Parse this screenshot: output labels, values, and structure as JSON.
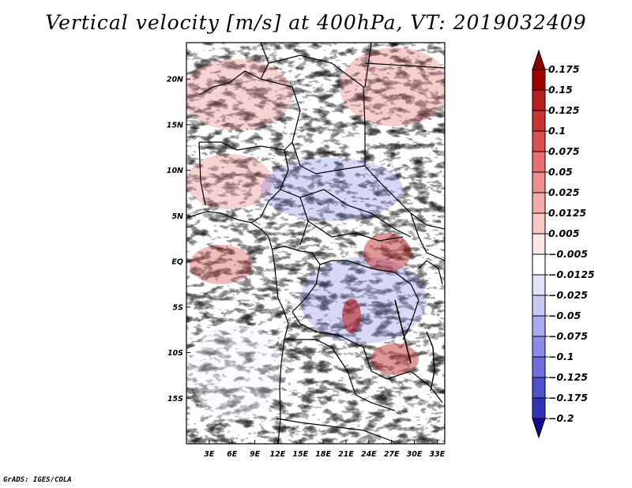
{
  "title": "Vertical velocity [m/s] at 400hPa, VT: 2019032409",
  "credit": "GrADS: IGES/COLA",
  "map": {
    "lon_range": [
      0,
      34
    ],
    "lat_range": [
      -20,
      24
    ],
    "lon_ticks": [
      {
        "value": 3,
        "label": "3E"
      },
      {
        "value": 6,
        "label": "6E"
      },
      {
        "value": 9,
        "label": "9E"
      },
      {
        "value": 12,
        "label": "12E"
      },
      {
        "value": 15,
        "label": "15E"
      },
      {
        "value": 18,
        "label": "18E"
      },
      {
        "value": 21,
        "label": "21E"
      },
      {
        "value": 24,
        "label": "24E"
      },
      {
        "value": 27,
        "label": "27E"
      },
      {
        "value": 30,
        "label": "30E"
      },
      {
        "value": 33,
        "label": "33E"
      }
    ],
    "lat_ticks": [
      {
        "value": 20,
        "label": "20N"
      },
      {
        "value": 15,
        "label": "15N"
      },
      {
        "value": 10,
        "label": "10N"
      },
      {
        "value": 5,
        "label": "5N"
      },
      {
        "value": 0,
        "label": "EQ"
      },
      {
        "value": -5,
        "label": "5S"
      },
      {
        "value": -10,
        "label": "10S"
      },
      {
        "value": -15,
        "label": "15S"
      }
    ]
  },
  "colorbar": {
    "levels": [
      {
        "label": "0.175",
        "color": "#a00000"
      },
      {
        "label": "0.15",
        "color": "#b81e1e"
      },
      {
        "label": "0.125",
        "color": "#cc3232"
      },
      {
        "label": "0.1",
        "color": "#dc5050"
      },
      {
        "label": "0.075",
        "color": "#e87070"
      },
      {
        "label": "0.05",
        "color": "#f08e8e"
      },
      {
        "label": "0.025",
        "color": "#f6aaaa"
      },
      {
        "label": "0.0125",
        "color": "#fbc8c8"
      },
      {
        "label": "0.005",
        "color": "#fde6e6"
      },
      {
        "label": "−0.005",
        "color": "#ffffff"
      },
      {
        "label": "−0.0125",
        "color": "#e2e2fb"
      },
      {
        "label": "−0.025",
        "color": "#c8c8f6"
      },
      {
        "label": "−0.05",
        "color": "#aaaaf0"
      },
      {
        "label": "−0.075",
        "color": "#8c8ce8"
      },
      {
        "label": "−0.1",
        "color": "#6e6edc"
      },
      {
        "label": "−0.125",
        "color": "#5050cc"
      },
      {
        "label": "−0.175",
        "color": "#3232b8"
      },
      {
        "label": "−0.2",
        "color": "#1e1ea0"
      }
    ],
    "over_color": "#8c0000",
    "under_color": "#140a8c"
  }
}
